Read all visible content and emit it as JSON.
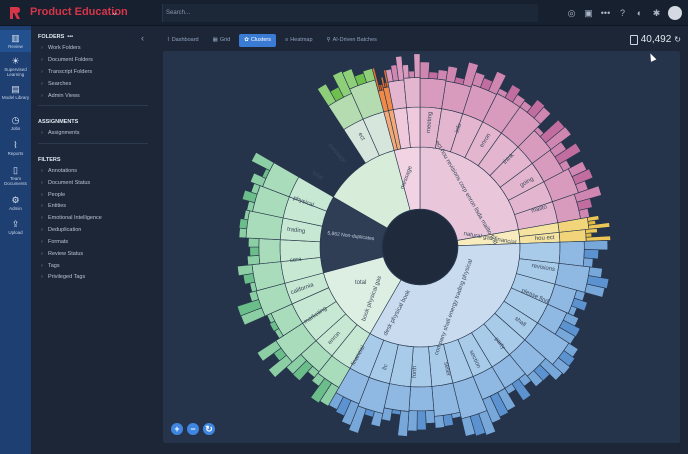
{
  "app": {
    "product": "Product Education",
    "search_placeholder": "Search..."
  },
  "rail": [
    {
      "icon": "review-icon",
      "label": "Review"
    },
    {
      "icon": "supervised-learning-icon",
      "label": "Supervised Learning"
    },
    {
      "icon": "model-library-icon",
      "label": "Model Library"
    },
    {
      "icon": "jobs-icon",
      "label": "Jobs"
    },
    {
      "icon": "reports-icon",
      "label": "Reports"
    },
    {
      "icon": "team-documents-icon",
      "label": "Team Documents"
    },
    {
      "icon": "admin-icon",
      "label": "Admin"
    },
    {
      "icon": "upload-icon",
      "label": "Upload"
    }
  ],
  "sidebar": {
    "folders_heading": "FOLDERS",
    "folders_more": "•••",
    "folders": [
      "Work Folders",
      "Document Folders",
      "Transcript Folders",
      "Searches",
      "Admin Views"
    ],
    "assignments_heading": "ASSIGNMENTS",
    "assignments": [
      "Assignments"
    ],
    "filters_heading": "FILTERS",
    "filters": [
      "Annotations",
      "Document Status",
      "People",
      "Entities",
      "Emotional Intelligence",
      "Deduplication",
      "Formats",
      "Review Status",
      "Tags",
      "Privileged Tags"
    ]
  },
  "tabs": [
    {
      "label": "Dashboard",
      "icon": "dashboard-icon",
      "active": false
    },
    {
      "label": "Grid",
      "icon": "grid-icon",
      "active": false
    },
    {
      "label": "Clusters",
      "icon": "clusters-icon",
      "active": true
    },
    {
      "label": "Heatmap",
      "icon": "heatmap-icon",
      "active": false
    },
    {
      "label": "AI-Driven Batches",
      "icon": "ai-batches-icon",
      "active": false
    }
  ],
  "doc_count": "40,492",
  "sunburst": {
    "inner_labels": [
      {
        "text": "5,862 Non-duplicates"
      },
      {
        "text": "message"
      },
      {
        "text": "ect hou revisions corp enron lisda mailto find"
      },
      {
        "text": "natural gas financial"
      },
      {
        "text": "company shall energy trading physical"
      },
      {
        "text": "book physical gas"
      },
      {
        "text": "total"
      },
      {
        "text": "desk physical book"
      }
    ],
    "outer_labels": [
      {
        "text": "meeting"
      },
      {
        "text": "info"
      },
      {
        "text": "enron"
      },
      {
        "text": "think"
      },
      {
        "text": "going"
      },
      {
        "text": "mailto"
      },
      {
        "text": "hou ect"
      },
      {
        "text": "revisions"
      },
      {
        "text": "please find"
      },
      {
        "text": "shall"
      },
      {
        "text": "party"
      },
      {
        "text": "section"
      },
      {
        "text": "seller"
      },
      {
        "text": "forth"
      },
      {
        "text": "llc"
      },
      {
        "text": "financial"
      },
      {
        "text": "enron"
      },
      {
        "text": "marketing"
      },
      {
        "text": "california"
      },
      {
        "text": "cera"
      },
      {
        "text": "trading"
      },
      {
        "text": "physical"
      },
      {
        "text": "total"
      },
      {
        "text": "message"
      },
      {
        "text": "ect"
      }
    ]
  },
  "colors": {
    "brand": "#d8344a",
    "accent": "#3a7bd5",
    "rail": "#1e3f72",
    "pink": "#e3b5cf",
    "blue": "#a9cbea",
    "green": "#bfe6cc",
    "yellow": "#f7e3a0",
    "orange": "#f08a4b"
  }
}
